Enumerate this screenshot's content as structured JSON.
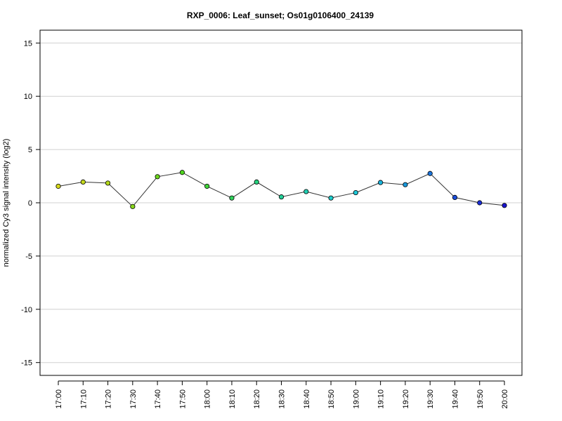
{
  "chart_data": {
    "type": "line",
    "title": "RXP_0006: Leaf_sunset; Os01g0106400_24139",
    "xlabel": "",
    "ylabel": "normalized Cy3 signal intensity (log2)",
    "ylim": [
      -16.2,
      16.2
    ],
    "yticks": [
      15,
      10,
      5,
      0,
      -5,
      -10,
      -15
    ],
    "ytick_labels": [
      "15",
      "10",
      "5",
      "0",
      "-5",
      "-10",
      "-15"
    ],
    "grid": true,
    "legend": "none",
    "categories": [
      "17:00",
      "17:10",
      "17:20",
      "17:30",
      "17:40",
      "17:50",
      "18:00",
      "18:10",
      "18:20",
      "18:30",
      "18:40",
      "18:50",
      "19:00",
      "19:10",
      "19:20",
      "19:30",
      "19:40",
      "19:50",
      "20:00"
    ],
    "series": [
      {
        "values": [
          1.55,
          1.95,
          1.85,
          -0.35,
          2.45,
          2.85,
          1.55,
          0.45,
          1.95,
          0.55,
          1.05,
          0.45,
          0.95,
          1.9,
          1.7,
          2.75,
          0.5,
          0.0,
          -0.25
        ],
        "point_colors": [
          "#d6d81c",
          "#c3d81c",
          "#b3d81a",
          "#88d71c",
          "#6dd61e",
          "#4fd41e",
          "#40d43a",
          "#31d35d",
          "#26d27e",
          "#23d098",
          "#22cfb3",
          "#1fcdcc",
          "#1ec8d8",
          "#1ab4dc",
          "#1a99dc",
          "#1a74dc",
          "#1a4edc",
          "#1a2ed8",
          "#1a15d0"
        ],
        "line_color": "#333333"
      }
    ]
  }
}
